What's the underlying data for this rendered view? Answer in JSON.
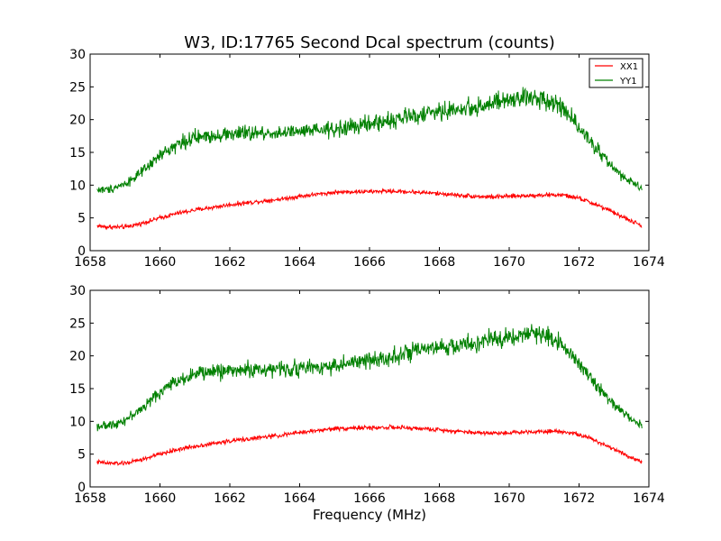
{
  "chart_data": [
    {
      "type": "line",
      "title": "W3, ID:17765 Second Dcal spectrum (counts)",
      "xlabel": "",
      "ylabel": "",
      "xlim": [
        1658,
        1674
      ],
      "ylim": [
        0,
        30
      ],
      "xticks": [
        1658,
        1660,
        1662,
        1664,
        1666,
        1668,
        1670,
        1672,
        1674
      ],
      "yticks": [
        0,
        5,
        10,
        15,
        20,
        25,
        30
      ],
      "x_range": [
        1658.2,
        1673.8
      ],
      "grid": false,
      "legend": {
        "position": "top-right",
        "entries": [
          "XX1",
          "YY1"
        ]
      },
      "noise_amplitude": {
        "XX1": 0.6,
        "YY1": 1.1
      },
      "series": [
        {
          "name": "XX1",
          "color": "#ff0000",
          "x": [
            1658.2,
            1658.5,
            1659.0,
            1659.5,
            1660.0,
            1660.5,
            1661.0,
            1661.5,
            1662.0,
            1662.5,
            1663.0,
            1663.5,
            1664.0,
            1664.5,
            1665.0,
            1665.5,
            1666.0,
            1666.5,
            1667.0,
            1667.5,
            1668.0,
            1668.5,
            1669.0,
            1669.5,
            1670.0,
            1670.5,
            1671.0,
            1671.5,
            1672.0,
            1672.5,
            1673.0,
            1673.5,
            1673.8
          ],
          "values": [
            3.8,
            3.6,
            3.6,
            4.2,
            5.0,
            5.7,
            6.2,
            6.6,
            7.0,
            7.3,
            7.6,
            7.9,
            8.3,
            8.6,
            8.9,
            9.0,
            9.0,
            9.1,
            9.0,
            8.9,
            8.7,
            8.5,
            8.3,
            8.2,
            8.3,
            8.4,
            8.5,
            8.5,
            8.0,
            7.0,
            5.8,
            4.5,
            3.8
          ]
        },
        {
          "name": "YY1",
          "color": "#008000",
          "x": [
            1658.2,
            1658.5,
            1659.0,
            1659.5,
            1660.0,
            1660.5,
            1661.0,
            1661.5,
            1662.0,
            1662.5,
            1663.0,
            1663.5,
            1664.0,
            1664.5,
            1665.0,
            1665.5,
            1666.0,
            1666.5,
            1667.0,
            1667.5,
            1668.0,
            1668.5,
            1669.0,
            1669.5,
            1670.0,
            1670.5,
            1671.0,
            1671.5,
            1672.0,
            1672.5,
            1673.0,
            1673.5,
            1673.8
          ],
          "values": [
            9.3,
            9.3,
            10.2,
            12.0,
            14.5,
            16.3,
            17.2,
            17.6,
            17.8,
            17.9,
            17.9,
            18.0,
            18.1,
            18.3,
            18.5,
            18.9,
            19.3,
            19.8,
            20.3,
            20.8,
            21.2,
            21.5,
            21.9,
            22.4,
            22.9,
            23.3,
            23.3,
            22.0,
            19.0,
            15.5,
            12.5,
            10.3,
            9.5
          ]
        }
      ]
    },
    {
      "type": "line",
      "title": "",
      "xlabel": "Frequency (MHz)",
      "ylabel": "",
      "xlim": [
        1658,
        1674
      ],
      "ylim": [
        0,
        30
      ],
      "xticks": [
        1658,
        1660,
        1662,
        1664,
        1666,
        1668,
        1670,
        1672,
        1674
      ],
      "yticks": [
        0,
        5,
        10,
        15,
        20,
        25,
        30
      ],
      "x_range": [
        1658.2,
        1673.8
      ],
      "grid": false,
      "legend": null,
      "noise_amplitude": {
        "XX1": 0.6,
        "YY1": 1.1
      },
      "series": [
        {
          "name": "",
          "color": "#ff0000",
          "x": [
            1658.2,
            1658.5,
            1659.0,
            1659.5,
            1660.0,
            1660.5,
            1661.0,
            1661.5,
            1662.0,
            1662.5,
            1663.0,
            1663.5,
            1664.0,
            1664.5,
            1665.0,
            1665.5,
            1666.0,
            1666.5,
            1667.0,
            1667.5,
            1668.0,
            1668.5,
            1669.0,
            1669.5,
            1670.0,
            1670.5,
            1671.0,
            1671.5,
            1672.0,
            1672.5,
            1673.0,
            1673.5,
            1673.8
          ],
          "values": [
            3.8,
            3.6,
            3.6,
            4.2,
            5.0,
            5.7,
            6.2,
            6.6,
            7.0,
            7.3,
            7.6,
            7.9,
            8.3,
            8.6,
            8.9,
            9.0,
            9.0,
            9.1,
            9.0,
            8.9,
            8.7,
            8.5,
            8.3,
            8.2,
            8.3,
            8.4,
            8.5,
            8.5,
            8.0,
            7.0,
            5.8,
            4.5,
            3.8
          ]
        },
        {
          "name": "",
          "color": "#008000",
          "x": [
            1658.2,
            1658.5,
            1659.0,
            1659.5,
            1660.0,
            1660.5,
            1661.0,
            1661.5,
            1662.0,
            1662.5,
            1663.0,
            1663.5,
            1664.0,
            1664.5,
            1665.0,
            1665.5,
            1666.0,
            1666.5,
            1667.0,
            1667.5,
            1668.0,
            1668.5,
            1669.0,
            1669.5,
            1670.0,
            1670.5,
            1671.0,
            1671.5,
            1672.0,
            1672.5,
            1673.0,
            1673.5,
            1673.8
          ],
          "values": [
            9.3,
            9.3,
            10.2,
            12.0,
            14.5,
            16.3,
            17.2,
            17.6,
            17.8,
            17.9,
            17.9,
            18.0,
            18.1,
            18.3,
            18.5,
            18.9,
            19.3,
            19.8,
            20.3,
            20.8,
            21.2,
            21.5,
            21.9,
            22.4,
            22.9,
            23.3,
            23.3,
            22.0,
            19.0,
            15.5,
            12.5,
            10.3,
            9.5
          ]
        }
      ]
    }
  ]
}
